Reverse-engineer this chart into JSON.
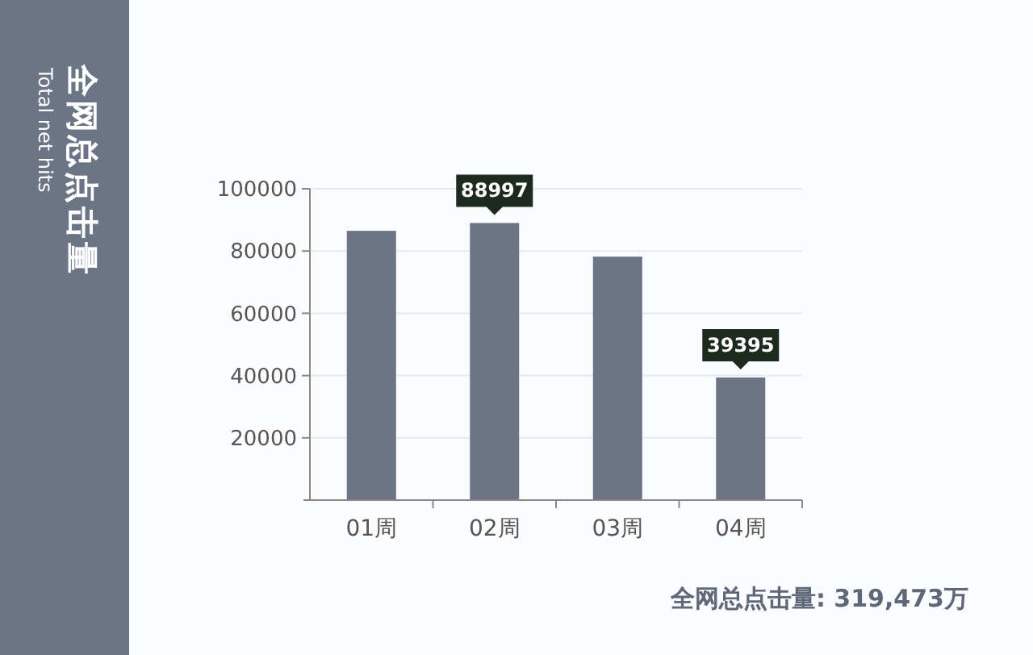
{
  "chart_data": {
    "type": "bar",
    "title": "全网总点击量",
    "subtitle": "Total net hits",
    "categories": [
      "01周",
      "02周",
      "03周",
      "04周"
    ],
    "values": [
      86500,
      88997,
      78200,
      39395
    ],
    "value_labels": [
      null,
      "88997",
      null,
      "39395"
    ],
    "color": "#6b7585",
    "ylim": [
      0,
      100000
    ],
    "yticks": [
      20000,
      40000,
      60000,
      80000,
      100000
    ],
    "grid": "y",
    "annotations": [
      "全网总点击量: 319,473万"
    ]
  }
}
